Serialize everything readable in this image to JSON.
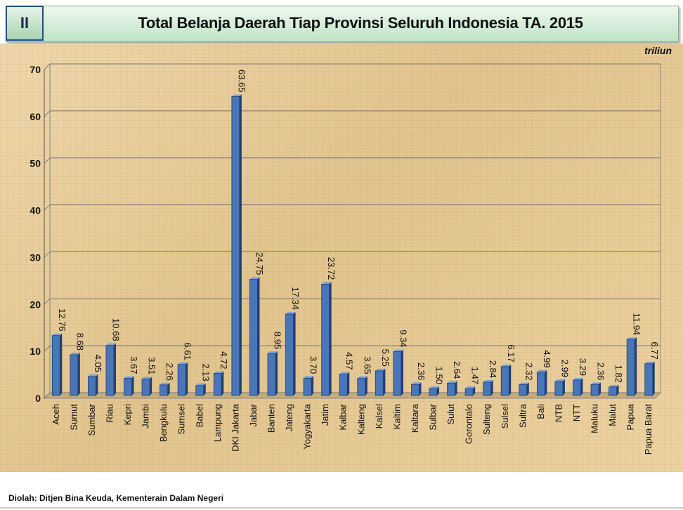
{
  "header": {
    "badge": "II",
    "title": "Total Belanja Daerah Tiap Provinsi Seluruh Indonesia TA. 2015"
  },
  "unit_label": "triliun",
  "source": "Diolah: Ditjen Bina Keuda, Kementerain Dalam Negeri",
  "colors": {
    "bar": "#4a76b8",
    "bar_dark": "#1f3f73",
    "grid": "#777777"
  },
  "chart_data": {
    "type": "bar",
    "title": "Total Belanja Daerah Tiap Provinsi Seluruh Indonesia TA. 2015",
    "xlabel": "",
    "ylabel": "",
    "ylim": [
      0,
      70
    ],
    "yticks": [
      0,
      10,
      20,
      30,
      40,
      50,
      60,
      70
    ],
    "grid": true,
    "categories": [
      "Aceh",
      "Sumut",
      "Sumbar",
      "Riau",
      "Kepri",
      "Jambi",
      "Bengkulu",
      "Sumsel",
      "Babel",
      "Lampung",
      "DKI Jakarta",
      "Jabar",
      "Banten",
      "Jateng",
      "Yogyakarta",
      "Jatim",
      "Kalbar",
      "Kalteng",
      "Kalsel",
      "Kaltim",
      "Kaltara",
      "Sulbar",
      "Sulut",
      "Gorontalo",
      "Sulteng",
      "Sulsel",
      "Sultra",
      "Bali",
      "NTB",
      "NTT",
      "Maluku",
      "Malut",
      "Papua",
      "Papua Barat"
    ],
    "values": [
      12.76,
      8.68,
      4.05,
      10.68,
      3.67,
      3.51,
      2.26,
      6.61,
      2.13,
      4.72,
      63.65,
      24.75,
      8.95,
      17.34,
      3.7,
      23.72,
      4.57,
      3.65,
      5.25,
      9.34,
      2.36,
      1.5,
      2.64,
      1.47,
      2.84,
      6.17,
      2.32,
      4.99,
      2.99,
      3.29,
      2.36,
      1.82,
      11.94,
      6.77
    ],
    "value_labels": [
      "12.76",
      "8.68",
      "4.05",
      "10.68",
      "3.67",
      "3.51",
      "2.26",
      "6.61",
      "2.13",
      "4.72",
      "63.65",
      "24.75",
      "8.95",
      "17.34",
      "3.70",
      "23.72",
      "4.57",
      "3.65",
      "5.25",
      "9.34",
      "2.36",
      "1.50",
      "2.64",
      "1.47",
      "2.84",
      "6.17",
      "2.32",
      "4.99",
      "2.99",
      "3.29",
      "2.36",
      "1.82",
      "11.94",
      "6.77"
    ]
  }
}
